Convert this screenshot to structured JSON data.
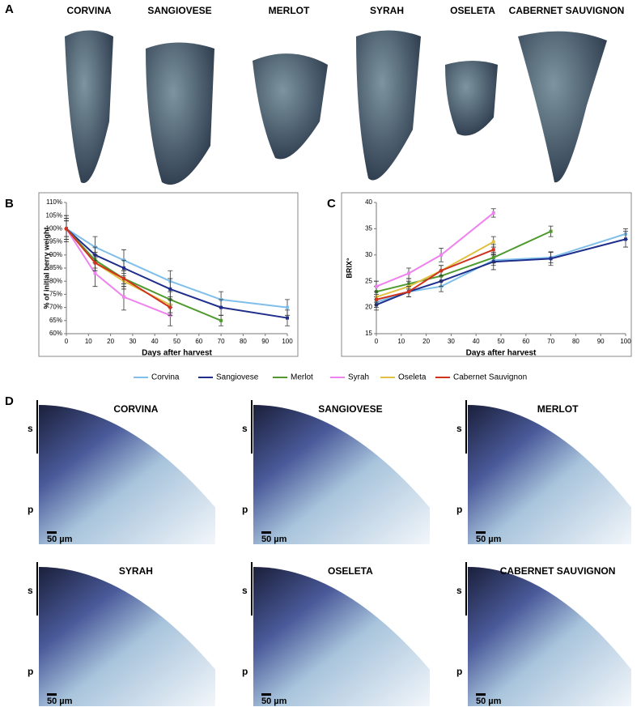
{
  "panel_a": {
    "label": "A",
    "varieties": [
      "CORVINA",
      "SANGIOVESE",
      "MERLOT",
      "SYRAH",
      "OSELETA",
      "CABERNET SAUVIGNON"
    ]
  },
  "chart_data": [
    {
      "type": "line",
      "panel": "B",
      "y_label": "% of initial berry weight",
      "x_label": "Days after harvest",
      "xlim": [
        0,
        100
      ],
      "xticks": [
        0,
        10,
        20,
        30,
        40,
        50,
        60,
        70,
        80,
        90,
        100
      ],
      "ylim": [
        60,
        110
      ],
      "yticks": [
        {
          "value": 60,
          "label": "60%"
        },
        {
          "value": 65,
          "label": "65%"
        },
        {
          "value": 70,
          "label": "70%"
        },
        {
          "value": 75,
          "label": "75%"
        },
        {
          "value": 80,
          "label": "80%"
        },
        {
          "value": 85,
          "label": "85%"
        },
        {
          "value": 90,
          "label": "90%"
        },
        {
          "value": 95,
          "label": "95%"
        },
        {
          "value": 100,
          "label": "100%"
        },
        {
          "value": 105,
          "label": "105%"
        },
        {
          "value": 110,
          "label": "110%"
        }
      ],
      "legend": "bottom",
      "series": [
        {
          "name": "Corvina",
          "color": "#7fbfea",
          "x": [
            0,
            13,
            26,
            47,
            70,
            100
          ],
          "values": [
            100,
            93,
            88,
            80,
            73,
            70
          ],
          "errors": [
            4,
            4,
            4,
            4,
            3,
            3
          ]
        },
        {
          "name": "Sangiovese",
          "color": "#1f2e8c",
          "x": [
            0,
            13,
            26,
            47,
            70,
            100
          ],
          "values": [
            100,
            90,
            85,
            77,
            70,
            66
          ],
          "errors": [
            5,
            3,
            3,
            4,
            3,
            3
          ]
        },
        {
          "name": "Merlot",
          "color": "#4e9a2e",
          "x": [
            0,
            13,
            26,
            47,
            70
          ],
          "values": [
            100,
            88,
            81,
            73,
            65
          ],
          "errors": [
            4,
            3,
            3,
            3,
            2
          ]
        },
        {
          "name": "Syrah",
          "color": "#ee82ee",
          "x": [
            0,
            13,
            26,
            47
          ],
          "values": [
            100,
            83,
            74,
            67
          ],
          "errors": [
            4,
            5,
            5,
            4
          ]
        },
        {
          "name": "Oseleta",
          "color": "#e0c040",
          "x": [
            0,
            13,
            26,
            47
          ],
          "values": [
            100,
            87,
            80,
            71
          ],
          "errors": [
            3,
            3,
            3,
            3
          ]
        },
        {
          "name": "Cabernet Sauvignon",
          "color": "#d0321e",
          "x": [
            0,
            13,
            26,
            47
          ],
          "values": [
            100,
            87,
            81,
            70
          ],
          "errors": [
            3,
            3,
            3,
            3
          ]
        }
      ]
    },
    {
      "type": "line",
      "panel": "C",
      "y_label": "BRIX°",
      "x_label": "Days after harvest",
      "xlim": [
        0,
        100
      ],
      "xticks": [
        0,
        10,
        20,
        30,
        40,
        50,
        60,
        70,
        80,
        90,
        100
      ],
      "ylim": [
        15,
        40
      ],
      "yticks": [
        15,
        20,
        25,
        30,
        35,
        40
      ],
      "series": [
        {
          "color": "#7fbfea",
          "x": [
            0,
            13,
            26,
            47,
            70,
            100
          ],
          "values": [
            21,
            23,
            24,
            29,
            29.5,
            34
          ],
          "errors": [
            1,
            1,
            1,
            1,
            1,
            1
          ]
        },
        {
          "color": "#1f2e8c",
          "x": [
            0,
            13,
            26,
            47,
            70,
            100
          ],
          "values": [
            20.5,
            23,
            25,
            28.7,
            29.3,
            33
          ],
          "errors": [
            1,
            1,
            1,
            1.5,
            1.3,
            1.5
          ]
        },
        {
          "color": "#4e9a2e",
          "x": [
            0,
            13,
            26,
            47,
            70
          ],
          "values": [
            23,
            24.5,
            26,
            29.5,
            34.5
          ],
          "errors": [
            1,
            1,
            1,
            1,
            1
          ]
        },
        {
          "color": "#ee82ee",
          "x": [
            0,
            13,
            26,
            47
          ],
          "values": [
            24,
            26.5,
            30,
            38
          ],
          "errors": [
            1,
            1,
            1.3,
            0.8
          ]
        },
        {
          "color": "#e0c040",
          "x": [
            0,
            13,
            26,
            47
          ],
          "values": [
            22,
            24,
            27,
            32.5
          ],
          "errors": [
            1,
            1,
            1,
            1
          ]
        },
        {
          "color": "#d0321e",
          "x": [
            0,
            13,
            26,
            47
          ],
          "values": [
            21.5,
            23,
            27,
            31
          ],
          "errors": [
            1,
            1,
            1,
            1
          ]
        }
      ]
    }
  ],
  "panel_d": {
    "label": "D",
    "images": [
      {
        "title": "CORVINA",
        "s": "s",
        "p": "p",
        "scale": "50 µm"
      },
      {
        "title": "SANGIOVESE",
        "s": "s",
        "p": "p",
        "scale": "50 µm"
      },
      {
        "title": "MERLOT",
        "s": "s",
        "p": "p",
        "scale": "50 µm"
      },
      {
        "title": "SYRAH",
        "s": "s",
        "p": "p",
        "scale": "50 µm"
      },
      {
        "title": "OSELETA",
        "s": "s",
        "p": "p",
        "scale": "50 µm"
      },
      {
        "title": "CABERNET SAUVIGNON",
        "s": "s",
        "p": "p",
        "scale": "50 µm"
      }
    ]
  }
}
